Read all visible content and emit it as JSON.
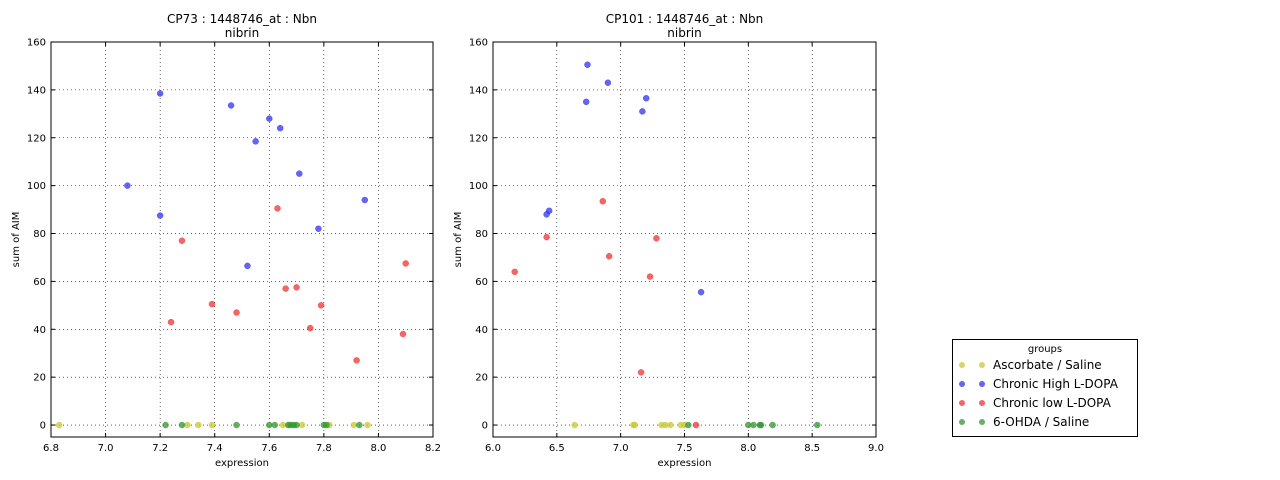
{
  "legend": {
    "title": "groups",
    "entries": [
      {
        "label": "Ascorbate / Saline",
        "color": "#c8c832"
      },
      {
        "label": "Chronic High L-DOPA",
        "color": "#3232f0"
      },
      {
        "label": "Chronic low L-DOPA",
        "color": "#f03232"
      },
      {
        "label": "6-OHDA / Saline",
        "color": "#329632"
      }
    ]
  },
  "chart_data": [
    {
      "type": "scatter",
      "title": "CP73 : 1448746_at : Nbn",
      "subtitle": "nibrin",
      "xlabel": "expression",
      "ylabel": "sum of AIM",
      "xlim": [
        6.8,
        8.2
      ],
      "ylim": [
        -5,
        160
      ],
      "xticks": [
        "6.8",
        "7.0",
        "7.2",
        "7.4",
        "7.6",
        "7.8",
        "8.0",
        "8.2"
      ],
      "yticks": [
        "0",
        "20",
        "40",
        "60",
        "80",
        "100",
        "120",
        "140",
        "160"
      ],
      "grid": true,
      "series": [
        {
          "name": "Ascorbate / Saline",
          "color": "#c8c832",
          "points": [
            [
              6.83,
              0
            ],
            [
              7.3,
              0
            ],
            [
              7.34,
              0
            ],
            [
              7.39,
              0
            ],
            [
              7.65,
              0
            ],
            [
              7.67,
              0
            ],
            [
              7.72,
              0
            ],
            [
              7.82,
              0
            ],
            [
              7.91,
              0
            ],
            [
              7.96,
              0
            ]
          ]
        },
        {
          "name": "Chronic High L-DOPA",
          "color": "#3232f0",
          "points": [
            [
              7.08,
              100
            ],
            [
              7.2,
              138.5
            ],
            [
              7.2,
              87.5
            ],
            [
              7.46,
              133.5
            ],
            [
              7.52,
              66.5
            ],
            [
              7.55,
              118.5
            ],
            [
              7.6,
              128
            ],
            [
              7.64,
              124
            ],
            [
              7.71,
              105
            ],
            [
              7.78,
              82
            ],
            [
              7.95,
              94
            ]
          ]
        },
        {
          "name": "Chronic low L-DOPA",
          "color": "#f03232",
          "points": [
            [
              7.24,
              43
            ],
            [
              7.28,
              77
            ],
            [
              7.39,
              50.5
            ],
            [
              7.48,
              47
            ],
            [
              7.63,
              90.5
            ],
            [
              7.66,
              57
            ],
            [
              7.7,
              57.5
            ],
            [
              7.75,
              40.5
            ],
            [
              7.79,
              50
            ],
            [
              7.92,
              27
            ],
            [
              8.09,
              38
            ],
            [
              8.1,
              67.5
            ]
          ]
        },
        {
          "name": "6-OHDA / Saline",
          "color": "#329632",
          "points": [
            [
              7.22,
              0
            ],
            [
              7.28,
              0
            ],
            [
              7.48,
              0
            ],
            [
              7.6,
              0
            ],
            [
              7.62,
              0
            ],
            [
              7.67,
              0
            ],
            [
              7.68,
              0
            ],
            [
              7.69,
              0
            ],
            [
              7.7,
              0
            ],
            [
              7.8,
              0
            ],
            [
              7.81,
              0
            ],
            [
              7.93,
              0
            ]
          ]
        }
      ]
    },
    {
      "type": "scatter",
      "title": "CP101 : 1448746_at : Nbn",
      "subtitle": "nibrin",
      "xlabel": "expression",
      "ylabel": "sum of AIM",
      "xlim": [
        6.0,
        9.0
      ],
      "ylim": [
        -5,
        160
      ],
      "xticks": [
        "6.0",
        "6.5",
        "7.0",
        "7.5",
        "8.0",
        "8.5",
        "9.0"
      ],
      "yticks": [
        "0",
        "20",
        "40",
        "60",
        "80",
        "100",
        "120",
        "140",
        "160"
      ],
      "grid": true,
      "series": [
        {
          "name": "Ascorbate / Saline",
          "color": "#c8c832",
          "points": [
            [
              6.64,
              0
            ],
            [
              7.1,
              0
            ],
            [
              7.11,
              0
            ],
            [
              7.32,
              0
            ],
            [
              7.35,
              0
            ],
            [
              7.39,
              0
            ],
            [
              7.47,
              0
            ],
            [
              7.5,
              0
            ]
          ]
        },
        {
          "name": "Chronic High L-DOPA",
          "color": "#3232f0",
          "points": [
            [
              6.42,
              88
            ],
            [
              6.44,
              89.5
            ],
            [
              6.73,
              135
            ],
            [
              6.74,
              150.5
            ],
            [
              6.9,
              143
            ],
            [
              7.17,
              131
            ],
            [
              7.2,
              136.5
            ],
            [
              7.63,
              55.5
            ]
          ]
        },
        {
          "name": "Chronic low L-DOPA",
          "color": "#f03232",
          "points": [
            [
              6.17,
              64
            ],
            [
              6.42,
              78.5
            ],
            [
              6.86,
              93.5
            ],
            [
              6.91,
              70.5
            ],
            [
              7.16,
              22
            ],
            [
              7.23,
              62
            ],
            [
              7.28,
              78
            ],
            [
              7.59,
              0
            ]
          ]
        },
        {
          "name": "6-OHDA / Saline",
          "color": "#329632",
          "points": [
            [
              7.53,
              0
            ],
            [
              8.0,
              0
            ],
            [
              8.04,
              0
            ],
            [
              8.09,
              0
            ],
            [
              8.1,
              0
            ],
            [
              8.19,
              0
            ],
            [
              8.54,
              0
            ]
          ]
        }
      ]
    }
  ]
}
